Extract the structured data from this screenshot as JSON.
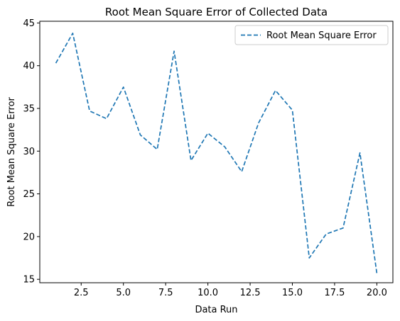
{
  "chart_data": {
    "type": "line",
    "title": "Root Mean Square Error of Collected Data",
    "xlabel": "Data Run",
    "ylabel": "Root Mean Square Error",
    "xlim": [
      0.05,
      20.95
    ],
    "ylim": [
      14.6,
      45.2
    ],
    "xticks": [
      2.5,
      5.0,
      7.5,
      10.0,
      12.5,
      15.0,
      17.5,
      20.0
    ],
    "xtick_labels": [
      "2.5",
      "5.0",
      "7.5",
      "10.0",
      "12.5",
      "15.0",
      "17.5",
      "20.0"
    ],
    "yticks": [
      15,
      20,
      25,
      30,
      35,
      40,
      45
    ],
    "ytick_labels": [
      "15",
      "20",
      "25",
      "30",
      "35",
      "40",
      "45"
    ],
    "grid": false,
    "legend_position": "top-right",
    "series": [
      {
        "name": "Root Mean Square Error",
        "style": "dashed",
        "color": "#1f77b4",
        "x": [
          1,
          2,
          3,
          4,
          5,
          6,
          7,
          8,
          9,
          10,
          11,
          12,
          13,
          14,
          15,
          16,
          17,
          18,
          19,
          20
        ],
        "y": [
          40.3,
          43.8,
          34.7,
          33.8,
          37.5,
          31.9,
          30.2,
          41.7,
          28.9,
          32.1,
          30.5,
          27.6,
          33.3,
          37.1,
          34.8,
          17.5,
          20.3,
          21.0,
          29.8,
          15.7
        ]
      }
    ]
  }
}
